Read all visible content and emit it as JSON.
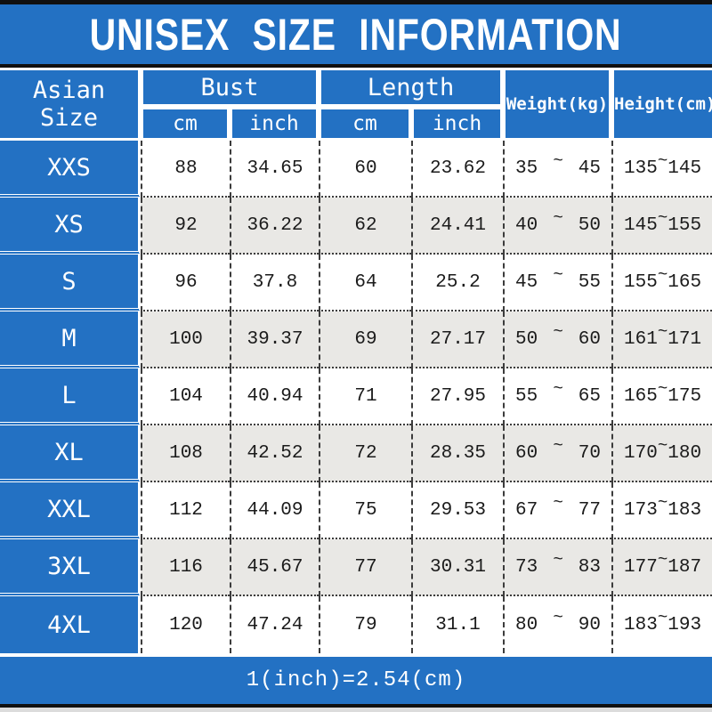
{
  "title": "UNISEX SIZE INFORMATION",
  "header": {
    "size": "Asian Size",
    "bust": "Bust",
    "length": "Length",
    "weight": "Weight(kg)",
    "height": "Height(cm)",
    "cm": "cm",
    "inch": "inch"
  },
  "symbols": {
    "tilde": "~"
  },
  "rows": [
    {
      "size": "XXS",
      "bust_cm": "88",
      "bust_inch": "34.65",
      "length_cm": "60",
      "length_inch": "23.62",
      "weight_min": "35",
      "weight_max": "45",
      "height_min": "135",
      "height_max": "145"
    },
    {
      "size": "XS",
      "bust_cm": "92",
      "bust_inch": "36.22",
      "length_cm": "62",
      "length_inch": "24.41",
      "weight_min": "40",
      "weight_max": "50",
      "height_min": "145",
      "height_max": "155"
    },
    {
      "size": "S",
      "bust_cm": "96",
      "bust_inch": "37.8",
      "length_cm": "64",
      "length_inch": "25.2",
      "weight_min": "45",
      "weight_max": "55",
      "height_min": "155",
      "height_max": "165"
    },
    {
      "size": "M",
      "bust_cm": "100",
      "bust_inch": "39.37",
      "length_cm": "69",
      "length_inch": "27.17",
      "weight_min": "50",
      "weight_max": "60",
      "height_min": "161",
      "height_max": "171"
    },
    {
      "size": "L",
      "bust_cm": "104",
      "bust_inch": "40.94",
      "length_cm": "71",
      "length_inch": "27.95",
      "weight_min": "55",
      "weight_max": "65",
      "height_min": "165",
      "height_max": "175"
    },
    {
      "size": "XL",
      "bust_cm": "108",
      "bust_inch": "42.52",
      "length_cm": "72",
      "length_inch": "28.35",
      "weight_min": "60",
      "weight_max": "70",
      "height_min": "170",
      "height_max": "180"
    },
    {
      "size": "XXL",
      "bust_cm": "112",
      "bust_inch": "44.09",
      "length_cm": "75",
      "length_inch": "29.53",
      "weight_min": "67",
      "weight_max": "77",
      "height_min": "173",
      "height_max": "183"
    },
    {
      "size": "3XL",
      "bust_cm": "116",
      "bust_inch": "45.67",
      "length_cm": "77",
      "length_inch": "30.31",
      "weight_min": "73",
      "weight_max": "83",
      "height_min": "177",
      "height_max": "187"
    },
    {
      "size": "4XL",
      "bust_cm": "120",
      "bust_inch": "47.24",
      "length_cm": "79",
      "length_inch": "31.1",
      "weight_min": "80",
      "weight_max": "90",
      "height_min": "183",
      "height_max": "193"
    }
  ],
  "footer": {
    "note": "1(inch)=2.54(cm)"
  },
  "colors": {
    "blue": "#2371c3",
    "row_alt": "#e9e8e5",
    "border_black": "#101010"
  },
  "chart_data": {
    "type": "table",
    "title": "UNISEX SIZE INFORMATION",
    "columns": [
      "Asian Size",
      "Bust cm",
      "Bust inch",
      "Length cm",
      "Length inch",
      "Weight(kg)",
      "Height(cm)"
    ],
    "rows": [
      [
        "XXS",
        88,
        34.65,
        60,
        23.62,
        "35~45",
        "135~145"
      ],
      [
        "XS",
        92,
        36.22,
        62,
        24.41,
        "40~50",
        "145~155"
      ],
      [
        "S",
        96,
        37.8,
        64,
        25.2,
        "45~55",
        "155~165"
      ],
      [
        "M",
        100,
        39.37,
        69,
        27.17,
        "50~60",
        "161~171"
      ],
      [
        "L",
        104,
        40.94,
        71,
        27.95,
        "55~65",
        "165~175"
      ],
      [
        "XL",
        108,
        42.52,
        72,
        28.35,
        "60~70",
        "170~180"
      ],
      [
        "XXL",
        112,
        44.09,
        75,
        29.53,
        "67~77",
        "173~183"
      ],
      [
        "3XL",
        116,
        45.67,
        77,
        30.31,
        "73~83",
        "177~187"
      ],
      [
        "4XL",
        120,
        47.24,
        79,
        31.1,
        "80~90",
        "183~193"
      ]
    ],
    "note": "1(inch)=2.54(cm)"
  }
}
